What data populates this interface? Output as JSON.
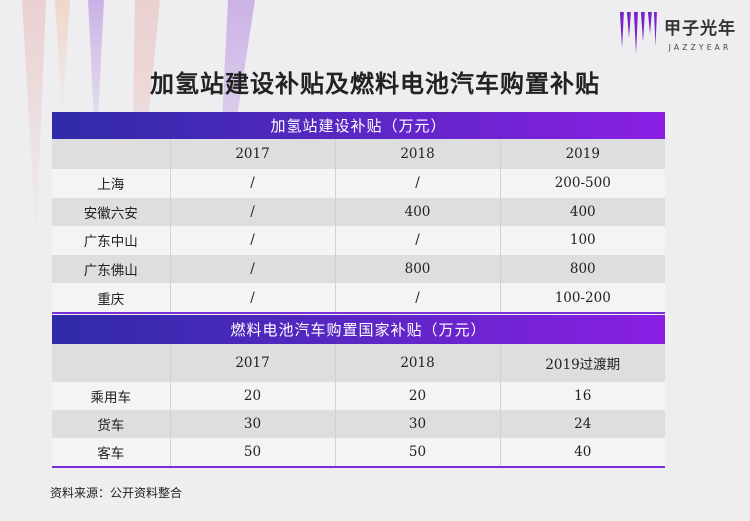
{
  "brand": {
    "name_cn": "甲子光年",
    "name_en": "JAZZYEAR",
    "accent": "#8b1fe4",
    "accent_dark": "#2f2aa8"
  },
  "title": "加氢站建设补贴及燃料电池汽车购置补贴",
  "table1": {
    "title": "加氢站建设补贴（万元）",
    "columns": [
      "",
      "2017",
      "2018",
      "2019"
    ],
    "rows": [
      [
        "上海",
        "/",
        "/",
        "200-500"
      ],
      [
        "安徽六安",
        "/",
        "400",
        "400"
      ],
      [
        "广东中山",
        "/",
        "/",
        "100"
      ],
      [
        "广东佛山",
        "/",
        "800",
        "800"
      ],
      [
        "重庆",
        "/",
        "/",
        "100-200"
      ]
    ]
  },
  "table2": {
    "title": "燃料电池汽车购置国家补贴（万元）",
    "columns": [
      "",
      "2017",
      "2018",
      "2019过渡期"
    ],
    "rows": [
      [
        "乘用车",
        "20",
        "20",
        "16"
      ],
      [
        "货车",
        "30",
        "30",
        "24"
      ],
      [
        "客车",
        "50",
        "50",
        "40"
      ]
    ]
  },
  "source": "资料来源：公开资料整合"
}
